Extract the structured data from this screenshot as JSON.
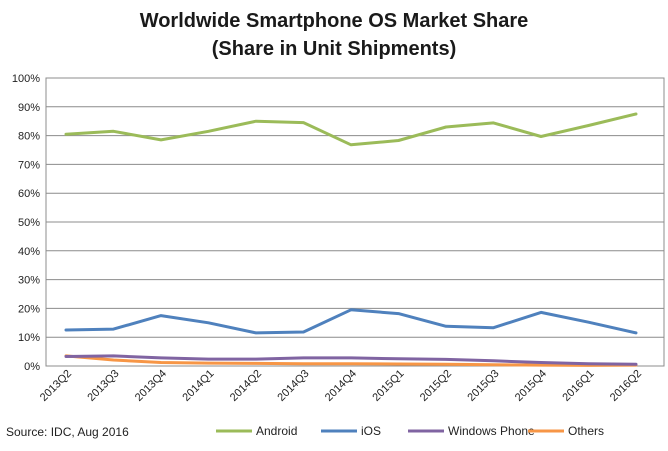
{
  "chart_data": {
    "type": "line",
    "title": "Worldwide Smartphone OS Market Share",
    "subtitle": "(Share in Unit Shipments)",
    "source": "Source: IDC, Aug 2016",
    "categories": [
      "2013Q2",
      "2013Q3",
      "2013Q4",
      "2014Q1",
      "2014Q2",
      "2014Q3",
      "2014Q4",
      "2015Q1",
      "2015Q2",
      "2015Q3",
      "2015Q4",
      "2016Q1",
      "2016Q2"
    ],
    "y_ticks": [
      "0%",
      "10%",
      "20%",
      "30%",
      "40%",
      "50%",
      "60%",
      "70%",
      "80%",
      "90%",
      "100%"
    ],
    "ylim": [
      0,
      100
    ],
    "grid": true,
    "legend_position": "bottom",
    "series": [
      {
        "name": "Android",
        "color": "#9bbb59",
        "values": [
          80.5,
          81.5,
          78.5,
          81.5,
          85.0,
          84.5,
          76.8,
          78.3,
          83.0,
          84.4,
          79.7,
          83.5,
          87.5
        ]
      },
      {
        "name": "iOS",
        "color": "#4f81bd",
        "values": [
          12.5,
          12.8,
          17.5,
          15.0,
          11.5,
          11.8,
          19.5,
          18.2,
          13.8,
          13.3,
          18.6,
          15.2,
          11.5
        ]
      },
      {
        "name": "Windows Phone",
        "color": "#8064a2",
        "values": [
          3.3,
          3.5,
          2.8,
          2.4,
          2.4,
          2.8,
          2.8,
          2.5,
          2.3,
          1.8,
          1.2,
          0.8,
          0.6
        ]
      },
      {
        "name": "Others",
        "color": "#f79646",
        "values": [
          3.5,
          2.1,
          1.2,
          1.0,
          0.9,
          0.8,
          0.8,
          0.7,
          0.6,
          0.4,
          0.3,
          0.2,
          0.3
        ]
      }
    ]
  }
}
